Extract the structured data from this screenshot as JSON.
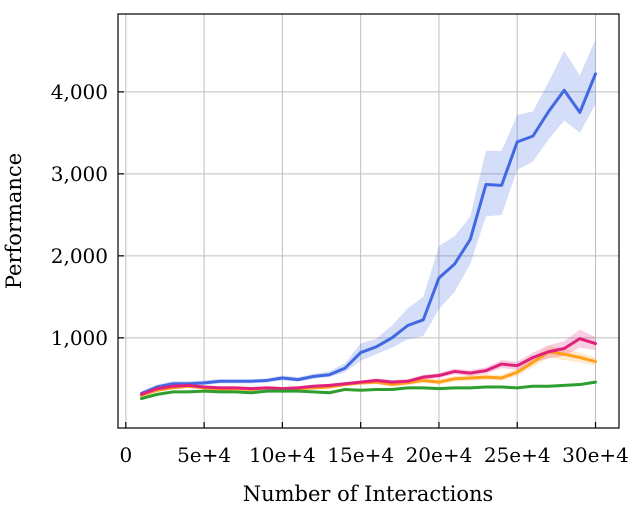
{
  "chart_data": {
    "type": "line",
    "title": "",
    "xlabel": "Number of Interactions",
    "ylabel": "Performance",
    "xlim": [
      -5000,
      315000
    ],
    "ylim": [
      -100,
      4950
    ],
    "grid": true,
    "legend": "none",
    "x_ticks": [
      {
        "value": 0,
        "label": "0"
      },
      {
        "value": 50000,
        "label": "5e+4"
      },
      {
        "value": 100000,
        "label": "10e+4"
      },
      {
        "value": 150000,
        "label": "15e+4"
      },
      {
        "value": 200000,
        "label": "20e+4"
      },
      {
        "value": 250000,
        "label": "25e+4"
      },
      {
        "value": 300000,
        "label": "30e+4"
      }
    ],
    "y_ticks": [
      {
        "value": 1000,
        "label": "1,000"
      },
      {
        "value": 2000,
        "label": "2,000"
      },
      {
        "value": 3000,
        "label": "3,000"
      },
      {
        "value": 4000,
        "label": "4,000"
      }
    ],
    "x": [
      10000,
      20000,
      30000,
      40000,
      50000,
      60000,
      70000,
      80000,
      90000,
      100000,
      110000,
      120000,
      130000,
      140000,
      150000,
      160000,
      170000,
      180000,
      190000,
      200000,
      210000,
      220000,
      230000,
      240000,
      250000,
      260000,
      270000,
      280000,
      290000,
      300000
    ],
    "series": [
      {
        "color": "#4169e1",
        "values": [
          320,
          400,
          440,
          440,
          450,
          470,
          470,
          470,
          480,
          510,
          490,
          530,
          550,
          630,
          820,
          890,
          1000,
          1150,
          1220,
          1730,
          1900,
          2200,
          2870,
          2860,
          3390,
          3460,
          3760,
          4020,
          3750,
          4220
        ],
        "lower": [
          290,
          370,
          410,
          415,
          425,
          445,
          445,
          445,
          455,
          480,
          465,
          500,
          520,
          580,
          720,
          800,
          880,
          980,
          1020,
          1350,
          1560,
          1900,
          2480,
          2500,
          3050,
          3150,
          3420,
          3650,
          3500,
          3850
        ],
        "upper": [
          350,
          430,
          470,
          470,
          480,
          495,
          495,
          495,
          505,
          540,
          520,
          560,
          590,
          690,
          930,
          990,
          1150,
          1360,
          1500,
          2120,
          2240,
          2480,
          3280,
          3280,
          3720,
          3760,
          4120,
          4500,
          4200,
          4640
        ]
      },
      {
        "color": "#ff9f1c",
        "values": [
          300,
          360,
          390,
          410,
          390,
          370,
          380,
          370,
          390,
          380,
          380,
          390,
          400,
          430,
          450,
          460,
          430,
          450,
          480,
          460,
          500,
          510,
          520,
          510,
          580,
          700,
          830,
          800,
          760,
          710
        ],
        "lower": [
          280,
          340,
          370,
          390,
          370,
          350,
          360,
          350,
          370,
          360,
          360,
          370,
          380,
          410,
          425,
          435,
          405,
          425,
          450,
          430,
          465,
          475,
          485,
          475,
          535,
          640,
          760,
          730,
          700,
          660
        ],
        "upper": [
          320,
          380,
          410,
          430,
          410,
          390,
          400,
          390,
          410,
          400,
          400,
          410,
          420,
          450,
          475,
          485,
          455,
          475,
          510,
          490,
          535,
          545,
          555,
          545,
          625,
          760,
          900,
          870,
          820,
          760
        ]
      },
      {
        "color": "#e0207a",
        "values": [
          310,
          380,
          410,
          420,
          400,
          390,
          390,
          380,
          390,
          380,
          390,
          410,
          420,
          440,
          460,
          480,
          460,
          470,
          520,
          540,
          590,
          570,
          600,
          680,
          660,
          760,
          830,
          870,
          990,
          930
        ],
        "lower": [
          290,
          360,
          390,
          400,
          380,
          370,
          370,
          360,
          370,
          360,
          370,
          390,
          400,
          420,
          440,
          455,
          435,
          445,
          490,
          510,
          555,
          535,
          560,
          630,
          610,
          700,
          750,
          780,
          880,
          850
        ],
        "upper": [
          330,
          400,
          430,
          440,
          420,
          410,
          410,
          400,
          410,
          400,
          410,
          430,
          440,
          460,
          480,
          505,
          485,
          495,
          550,
          570,
          625,
          605,
          640,
          730,
          710,
          820,
          910,
          960,
          1100,
          1010
        ]
      },
      {
        "color": "#2e9e2e",
        "values": [
          260,
          310,
          340,
          340,
          350,
          340,
          340,
          330,
          350,
          350,
          350,
          340,
          330,
          370,
          360,
          370,
          370,
          390,
          390,
          380,
          390,
          390,
          400,
          400,
          390,
          410,
          410,
          420,
          430,
          460
        ],
        "lower": [
          245,
          295,
          325,
          325,
          335,
          325,
          325,
          315,
          335,
          335,
          335,
          325,
          315,
          355,
          345,
          355,
          355,
          375,
          375,
          365,
          375,
          375,
          385,
          385,
          375,
          395,
          395,
          405,
          415,
          440
        ],
        "upper": [
          275,
          325,
          355,
          355,
          365,
          355,
          355,
          345,
          365,
          365,
          365,
          355,
          345,
          385,
          375,
          385,
          385,
          405,
          405,
          395,
          405,
          405,
          415,
          415,
          405,
          425,
          425,
          435,
          445,
          480
        ]
      }
    ]
  }
}
